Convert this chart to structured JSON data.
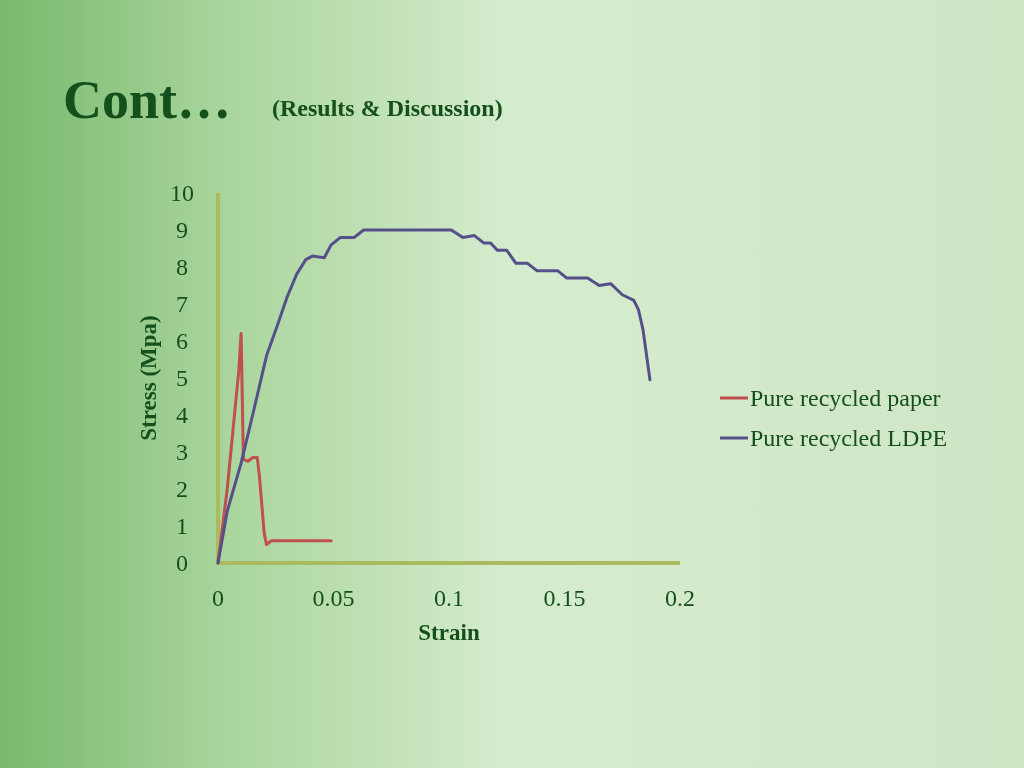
{
  "chart_data": {
    "type": "line",
    "title": "Cont…",
    "subtitle": "(Results & Discussion)",
    "xlabel": "Strain",
    "ylabel": "Stress (Mpa)",
    "xlim": [
      0,
      0.2
    ],
    "xticks": [
      0,
      0.05,
      0.1,
      0.15,
      0.2
    ],
    "ylim": [
      0,
      10
    ],
    "yticks": [
      0,
      1,
      2,
      3,
      4,
      5,
      6,
      7,
      8,
      9,
      10
    ],
    "legend": "right",
    "series": [
      {
        "name": "Pure recycled paper",
        "color": "#c0504d",
        "x": [
          0,
          0.004,
          0.009,
          0.01,
          0.011,
          0.013,
          0.015,
          0.017,
          0.018,
          0.02,
          0.021,
          0.023,
          0.026,
          0.049
        ],
        "values": [
          0,
          2.0,
          5.2,
          6.2,
          2.8,
          2.75,
          2.85,
          2.85,
          2.3,
          0.8,
          0.5,
          0.6,
          0.6,
          0.6
        ]
      },
      {
        "name": "Pure recycled LDPE",
        "color": "#56508a",
        "x": [
          0,
          0.004,
          0.01,
          0.015,
          0.021,
          0.025,
          0.03,
          0.034,
          0.038,
          0.041,
          0.046,
          0.049,
          0.053,
          0.059,
          0.063,
          0.101,
          0.106,
          0.111,
          0.115,
          0.118,
          0.121,
          0.125,
          0.129,
          0.134,
          0.138,
          0.147,
          0.151,
          0.16,
          0.165,
          0.17,
          0.175,
          0.18,
          0.182,
          0.184,
          0.187
        ],
        "values": [
          0,
          1.4,
          2.7,
          4.0,
          5.6,
          6.3,
          7.2,
          7.8,
          8.2,
          8.3,
          8.25,
          8.6,
          8.8,
          8.8,
          9.0,
          9.0,
          8.8,
          8.85,
          8.65,
          8.65,
          8.45,
          8.45,
          8.1,
          8.1,
          7.9,
          7.9,
          7.7,
          7.7,
          7.5,
          7.55,
          7.25,
          7.1,
          6.85,
          6.3,
          4.95
        ]
      }
    ]
  }
}
